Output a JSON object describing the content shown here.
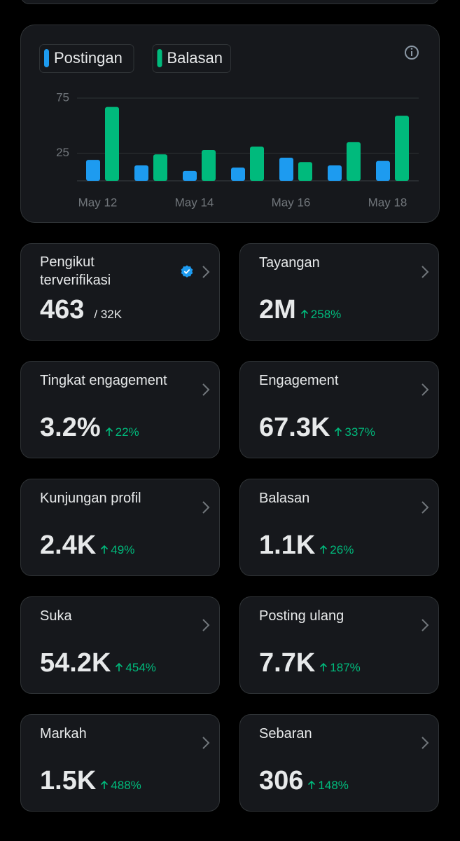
{
  "chart_data": {
    "type": "bar",
    "categories": [
      "May 12",
      null,
      "May 14",
      null,
      "May 16",
      null,
      "May 18"
    ],
    "series": [
      {
        "name": "Postingan",
        "color": "#1d9bf0",
        "values": [
          19,
          14,
          9,
          12,
          21,
          14,
          18
        ]
      },
      {
        "name": "Balasan",
        "color": "#00ba7c",
        "values": [
          67,
          24,
          28,
          31,
          17,
          35,
          59
        ]
      }
    ],
    "ylim": [
      0,
      75
    ],
    "yticks": [
      25,
      75
    ],
    "grid": true
  },
  "stats": [
    {
      "label": "Pengikut terverifikasi",
      "value": "463",
      "total": "/ 32K"
    },
    {
      "label": "Tayangan",
      "value": "2M",
      "change": "258%"
    },
    {
      "label": "Tingkat engagement",
      "value": "3.2%",
      "change": "22%"
    },
    {
      "label": "Engagement",
      "value": "67.3K",
      "change": "337%"
    },
    {
      "label": "Kunjungan profil",
      "value": "2.4K",
      "change": "49%"
    },
    {
      "label": "Balasan",
      "value": "1.1K",
      "change": "26%"
    },
    {
      "label": "Suka",
      "value": "54.2K",
      "change": "454%"
    },
    {
      "label": "Posting ulang",
      "value": "7.7K",
      "change": "187%"
    },
    {
      "label": "Markah",
      "value": "1.5K",
      "change": "488%"
    },
    {
      "label": "Sebaran",
      "value": "306",
      "change": "148%"
    }
  ]
}
